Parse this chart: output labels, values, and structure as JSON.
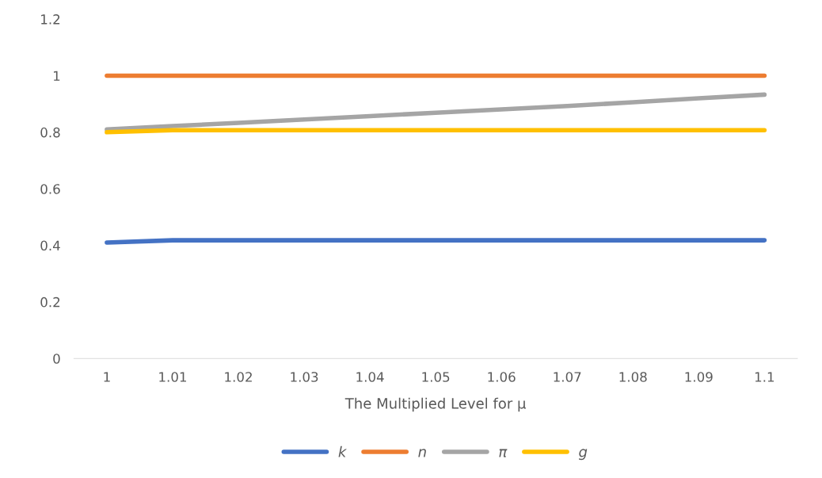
{
  "chart_data": {
    "type": "line",
    "xlabel": "The Multiplied Level for μ",
    "categories": [
      "1",
      "1.01",
      "1.02",
      "1.03",
      "1.04",
      "1.05",
      "1.06",
      "1.07",
      "1.08",
      "1.09",
      "1.1"
    ],
    "series": [
      {
        "name": "k",
        "color": "#4472c4",
        "values": [
          0.41,
          0.418,
          0.418,
          0.418,
          0.418,
          0.418,
          0.418,
          0.418,
          0.418,
          0.418,
          0.418
        ]
      },
      {
        "name": "n",
        "color": "#ed7d31",
        "values": [
          1,
          1,
          1,
          1,
          1,
          1,
          1,
          1,
          1,
          1,
          1
        ]
      },
      {
        "name": "π",
        "color": "#a5a5a5",
        "values": [
          0.81,
          0.822,
          0.833,
          0.845,
          0.857,
          0.869,
          0.881,
          0.893,
          0.906,
          0.92,
          0.933
        ]
      },
      {
        "name": "g",
        "color": "#ffc000",
        "values": [
          0.8,
          0.807,
          0.807,
          0.807,
          0.807,
          0.807,
          0.807,
          0.807,
          0.807,
          0.807,
          0.807
        ]
      }
    ],
    "ylim": [
      0,
      1.2
    ],
    "yticks": [
      0,
      0.2,
      0.4,
      0.6,
      0.8,
      1,
      1.2
    ],
    "grid": false,
    "legend": "bottom",
    "marker": "none",
    "line_style": "solid"
  }
}
